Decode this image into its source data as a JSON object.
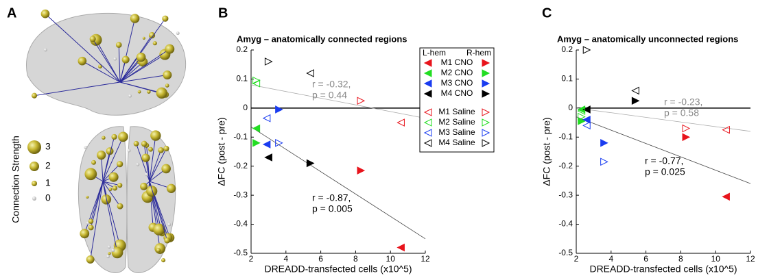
{
  "panel_a": {
    "panel_label": "A",
    "legend": {
      "title": "Connection Strength",
      "items": [
        3,
        2,
        1,
        0
      ]
    }
  },
  "chart_data": [
    {
      "type": "scatter",
      "panel_label": "B",
      "title": "Amyg – anatomically connected regions",
      "xlabel": "DREADD-transfected cells (x10^5)",
      "ylabel": "ΔFC (post - pre)",
      "xlim": [
        2,
        12
      ],
      "ylim": [
        -0.5,
        0.2
      ],
      "xticks": [
        2,
        4,
        6,
        8,
        10,
        12
      ],
      "yticks": [
        0.2,
        0.1,
        0,
        -0.1,
        -0.2,
        -0.3,
        -0.4,
        -0.5
      ],
      "legend": "upper right",
      "legend_columns": [
        "L-hem",
        "R-hem"
      ],
      "series": [
        {
          "name": "M1 CNO",
          "color": "#e8141c",
          "filled": true,
          "x": [
            10.6,
            8.3
          ],
          "values": [
            -0.48,
            -0.215
          ]
        },
        {
          "name": "M2 CNO",
          "color": "#22dd22",
          "filled": true,
          "x": [
            2.3,
            2.3
          ],
          "values": [
            -0.07,
            -0.12
          ]
        },
        {
          "name": "M3 CNO",
          "color": "#1a3cf0",
          "filled": true,
          "x": [
            2.9,
            3.6
          ],
          "values": [
            -0.125,
            -0.005
          ]
        },
        {
          "name": "M4 CNO",
          "color": "#000000",
          "filled": true,
          "x": [
            3.0,
            5.4
          ],
          "values": [
            -0.17,
            -0.19
          ]
        },
        {
          "name": "M1 Saline",
          "color": "#e8141c",
          "filled": false,
          "x": [
            10.6,
            8.3
          ],
          "values": [
            -0.05,
            0.025
          ]
        },
        {
          "name": "M2 Saline",
          "color": "#22dd22",
          "filled": false,
          "x": [
            2.3,
            2.3
          ],
          "values": [
            0.085,
            0.095
          ]
        },
        {
          "name": "M3 Saline",
          "color": "#1a3cf0",
          "filled": false,
          "x": [
            2.9,
            3.6
          ],
          "values": [
            -0.035,
            -0.12
          ]
        },
        {
          "name": "M4 Saline",
          "color": "#000000",
          "filled": false,
          "x": [
            5.4,
            3.0
          ],
          "values": [
            0.12,
            0.16
          ]
        }
      ],
      "fit_lines": [
        {
          "color": "#aaaaaa",
          "x": [
            2,
            12
          ],
          "values": [
            0.08,
            -0.035
          ]
        },
        {
          "color": "#444444",
          "x": [
            2,
            12
          ],
          "values": [
            -0.065,
            -0.45
          ]
        }
      ],
      "annotations": [
        {
          "color": "#888888",
          "lines": [
            "r = -0.32,",
            "p = 0.44"
          ]
        },
        {
          "color": "#000000",
          "lines": [
            "r = -0.87,",
            "p = 0.005"
          ]
        }
      ]
    },
    {
      "type": "scatter",
      "panel_label": "C",
      "title": "Amyg – anatomically unconnected regions",
      "xlabel": "DREADD-transfected cells (x10^5)",
      "ylabel": "ΔFC (post - pre)",
      "xlim": [
        2,
        12
      ],
      "ylim": [
        -0.5,
        0.2
      ],
      "xticks": [
        2,
        4,
        6,
        8,
        10,
        12
      ],
      "yticks": [
        0.2,
        0.1,
        0,
        -0.1,
        -0.2,
        -0.3,
        -0.4,
        -0.5
      ],
      "series": [
        {
          "color": "#e8141c",
          "filled": true,
          "x": [
            10.6,
            8.3
          ],
          "values": [
            -0.305,
            -0.1
          ]
        },
        {
          "color": "#22dd22",
          "filled": true,
          "x": [
            2.3,
            2.3
          ],
          "values": [
            -0.005,
            -0.045
          ]
        },
        {
          "color": "#1a3cf0",
          "filled": true,
          "x": [
            2.6,
            3.6
          ],
          "values": [
            -0.04,
            -0.12
          ]
        },
        {
          "color": "#000000",
          "filled": true,
          "x": [
            2.6,
            5.4
          ],
          "values": [
            -0.005,
            0.025
          ]
        },
        {
          "color": "#e8141c",
          "filled": false,
          "x": [
            10.6,
            8.3
          ],
          "values": [
            -0.075,
            -0.07
          ]
        },
        {
          "color": "#22dd22",
          "filled": false,
          "x": [
            2.3,
            2.3
          ],
          "values": [
            -0.01,
            -0.03
          ]
        },
        {
          "color": "#1a3cf0",
          "filled": false,
          "x": [
            2.6,
            3.6
          ],
          "values": [
            -0.06,
            -0.185
          ]
        },
        {
          "color": "#000000",
          "filled": false,
          "x": [
            5.4,
            2.6
          ],
          "values": [
            0.06,
            0.2
          ]
        }
      ],
      "fit_lines": [
        {
          "color": "#aaaaaa",
          "x": [
            2,
            12
          ],
          "values": [
            0,
            -0.08
          ]
        },
        {
          "color": "#444444",
          "x": [
            2,
            12
          ],
          "values": [
            -0.03,
            -0.26
          ]
        }
      ],
      "annotations": [
        {
          "color": "#888888",
          "lines": [
            "r = -0.23,",
            "p = 0.58"
          ]
        },
        {
          "color": "#000000",
          "lines": [
            "r = -0.77,",
            "p = 0.025"
          ]
        }
      ]
    }
  ]
}
